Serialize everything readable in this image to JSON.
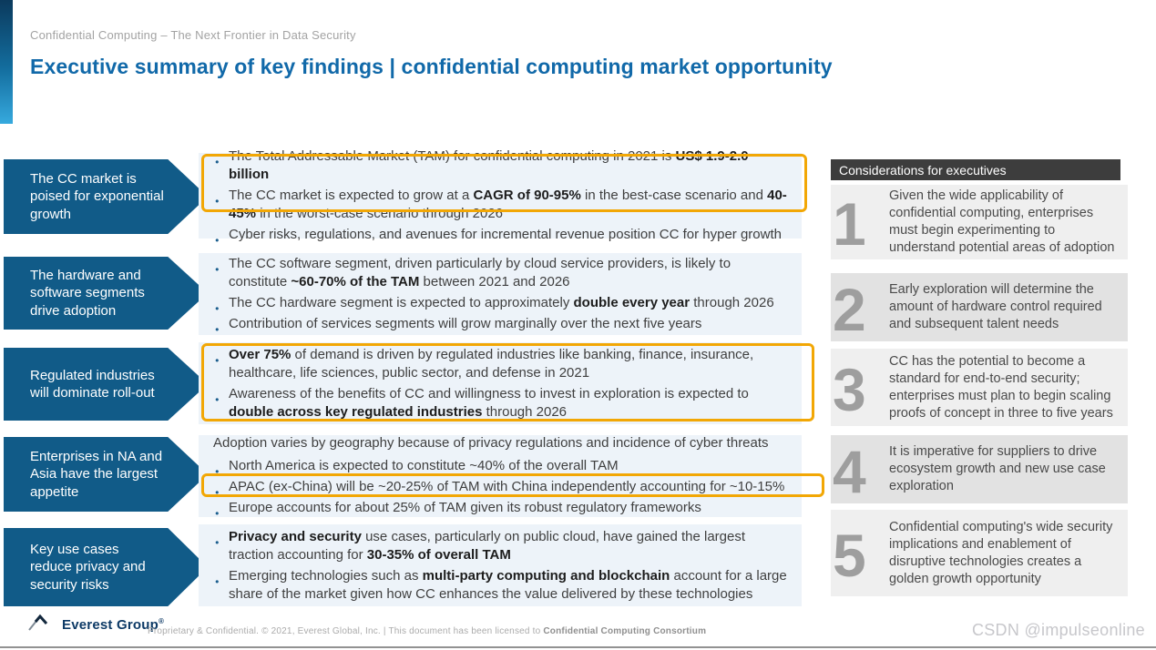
{
  "page": {
    "kicker": "Confidential Computing – The Next Frontier in Data Security",
    "title": "Executive summary of key findings | confidential computing market opportunity"
  },
  "colors": {
    "brand_blue": "#115b88",
    "title_blue": "#1169a9",
    "highlight_orange": "#f2a705",
    "block_bg": "#edf3f9",
    "considerations_header_bg": "#3d3d3d",
    "numeral_gray": "#9e9e9e"
  },
  "rows": [
    {
      "arrow": "The CC market is poised for exponential growth",
      "bullets": [
        [
          {
            "t": "The Total Addressable Market (TAM) for confidential computing in 2021 is "
          },
          {
            "t": "US$ 1.9-2.0 billion",
            "b": true
          }
        ],
        [
          {
            "t": "The CC market is expected to grow at a "
          },
          {
            "t": "CAGR of 90-95%",
            "b": true
          },
          {
            "t": " in the best-case scenario and "
          },
          {
            "t": "40-45%",
            "b": true
          },
          {
            "t": " in the worst-case scenario through 2026"
          }
        ],
        [
          {
            "t": "Cyber risks, regulations, and avenues for incremental revenue position CC for hyper growth"
          }
        ]
      ]
    },
    {
      "arrow": "The hardware and software segments drive adoption",
      "bullets": [
        [
          {
            "t": "The CC software segment, driven particularly by cloud service providers, is likely to constitute "
          },
          {
            "t": "~60-70% of the TAM",
            "b": true
          },
          {
            "t": " between 2021 and 2026"
          }
        ],
        [
          {
            "t": "The CC hardware segment is expected to approximately "
          },
          {
            "t": "double every year",
            "b": true
          },
          {
            "t": " through 2026"
          }
        ],
        [
          {
            "t": "Contribution of services segments will grow marginally over the next five years"
          }
        ]
      ]
    },
    {
      "arrow": "Regulated industries will dominate roll-out",
      "bullets": [
        [
          {
            "t": "Over 75%",
            "b": true
          },
          {
            "t": " of demand is driven by regulated industries like banking, finance, insurance, healthcare, life sciences, public sector, and defense in 2021"
          }
        ],
        [
          {
            "t": "Awareness of the benefits of CC and willingness to invest in exploration is expected to "
          },
          {
            "t": "double across key regulated industries",
            "b": true
          },
          {
            "t": " through 2026"
          }
        ]
      ]
    },
    {
      "arrow": "Enterprises in NA and Asia have the largest appetite",
      "lead": "Adoption varies by geography because of privacy regulations and incidence of cyber threats",
      "bullets": [
        [
          {
            "t": "North America is expected to constitute ~40% of the overall TAM"
          }
        ],
        [
          {
            "t": "APAC (ex-China) will be ~20-25% of TAM with China independently accounting for ~10-15%"
          }
        ],
        [
          {
            "t": "Europe accounts for about 25% of TAM given its robust regulatory frameworks"
          }
        ]
      ]
    },
    {
      "arrow": "Key use cases reduce privacy and security risks",
      "bullets": [
        [
          {
            "t": "Privacy and security",
            "b": true
          },
          {
            "t": " use cases, particularly on public cloud, have gained the largest traction accounting for "
          },
          {
            "t": "30-35% of overall TAM",
            "b": true
          }
        ],
        [
          {
            "t": "Emerging technologies such as "
          },
          {
            "t": "multi-party computing and blockchain",
            "b": true
          },
          {
            "t": " account for a large share of the market given how CC enhances the value delivered by these technologies"
          }
        ]
      ]
    }
  ],
  "considerations": {
    "header": "Considerations for executives",
    "items": [
      {
        "num": "1",
        "text": "Given the wide applicability of confidential computing, enterprises must begin experimenting to understand potential areas of adoption"
      },
      {
        "num": "2",
        "text": "Early exploration will determine the amount of hardware control required and subsequent talent needs"
      },
      {
        "num": "3",
        "text": "CC has the potential to become a standard for end-to-end security; enterprises must plan to begin scaling proofs of concept in three to five years"
      },
      {
        "num": "4",
        "text": "It is imperative for suppliers to drive ecosystem growth and new use case exploration"
      },
      {
        "num": "5",
        "text": "Confidential computing's wide security implications and enablement of disruptive technologies creates a golden growth opportunity"
      }
    ]
  },
  "footer": {
    "logo_text": "Everest Group",
    "logo_reg": "®",
    "text_plain": "Proprietary & Confidential. © 2021, Everest Global, Inc. | This document has been licensed to ",
    "text_bold": "Confidential Computing Consortium"
  },
  "watermark": "CSDN @impulseonline"
}
